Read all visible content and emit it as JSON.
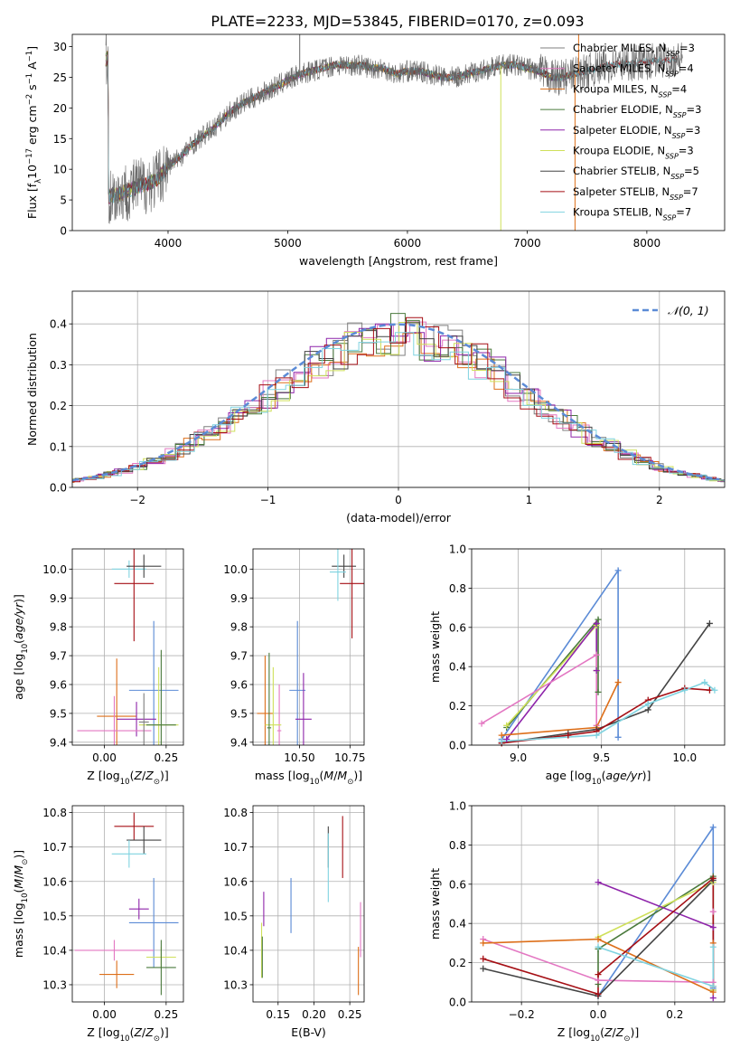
{
  "title": "PLATE=2233, MJD=53845, FIBERID=0170, z=0.093",
  "colors": {
    "Chabrier MILES": "#7f7f7f",
    "Salpeter MILES": "#e377c2",
    "Kroupa MILES": "#dd6f1a",
    "Chabrier ELODIE": "#4a7a3c",
    "Salpeter ELODIE": "#8e24aa",
    "Kroupa ELODIE": "#cfe05a",
    "Chabrier STELIB": "#444444",
    "Salpeter STELIB": "#a50f15",
    "Kroupa STELIB": "#7fd3e0",
    "extra": "#5b8bd6"
  },
  "chart_data": [
    {
      "id": "spectrum",
      "type": "line",
      "title": "PLATE=2233, MJD=53845, FIBERID=0170, z=0.093",
      "xlabel": "wavelength [Angstrom, rest frame]",
      "ylabel": "Flux [f_λ 10^-17 erg cm^-2 s^-1 A^-1]",
      "xlim": [
        3200,
        8650
      ],
      "ylim": [
        0,
        32
      ],
      "xticks": [
        4000,
        5000,
        6000,
        7000,
        8000
      ],
      "yticks": [
        0,
        5,
        10,
        15,
        20,
        25,
        30
      ],
      "grid": false,
      "legend_position": "top-right",
      "legend": [
        {
          "name": "Chabrier MILES",
          "sub": "SSP",
          "n": "=3"
        },
        {
          "name": "Salpeter MILES",
          "sub": "SSP",
          "n": "=4"
        },
        {
          "name": "Kroupa MILES",
          "sub": "SSP",
          "n": "=4"
        },
        {
          "name": "Chabrier ELODIE",
          "sub": "SSP",
          "n": "=3"
        },
        {
          "name": "Salpeter ELODIE",
          "sub": "SSP",
          "n": "=3"
        },
        {
          "name": "Kroupa ELODIE",
          "sub": "SSP",
          "n": "=3"
        },
        {
          "name": "Chabrier STELIB",
          "sub": "SSP",
          "n": "=5"
        },
        {
          "name": "Salpeter STELIB",
          "sub": "SSP",
          "n": "=7"
        },
        {
          "name": "Kroupa STELIB",
          "sub": "SSP",
          "n": "=7"
        }
      ],
      "continuum": {
        "x": [
          3500,
          3600,
          3700,
          3800,
          3900,
          4000,
          4100,
          4200,
          4300,
          4400,
          4500,
          4600,
          4700,
          4800,
          4900,
          5000,
          5100,
          5200,
          5300,
          5400,
          5500,
          5600,
          5700,
          5800,
          5900,
          6000,
          6100,
          6200,
          6300,
          6400,
          6500,
          6600,
          6700,
          6800,
          6900,
          7000,
          7100,
          7200,
          7300,
          7400,
          7500,
          7700,
          8000,
          8300
        ],
        "y": [
          5.5,
          6,
          6.8,
          7.5,
          8.2,
          10.5,
          12,
          14,
          15.5,
          17,
          19,
          20.5,
          21.5,
          22.5,
          23.5,
          24.5,
          25.5,
          26,
          26.5,
          27,
          27,
          27,
          26.5,
          26.5,
          25.5,
          26,
          26,
          25.5,
          25,
          25,
          25.5,
          26,
          26.5,
          27,
          27,
          26.5,
          26,
          25,
          25,
          25.5,
          26,
          27,
          27.5,
          28
        ]
      },
      "spikes": [
        {
          "x": 5100,
          "y": 33
        },
        {
          "x": 6780,
          "y": 0
        },
        {
          "x": 7400,
          "y": 0
        },
        {
          "x": 7430,
          "y": 32
        }
      ]
    },
    {
      "id": "residuals",
      "type": "histogram",
      "xlabel": "(data-model)/error",
      "ylabel": "Normed distribution",
      "xlim": [
        -2.5,
        2.5
      ],
      "ylim": [
        0,
        0.48
      ],
      "xticks": [
        -2,
        -1,
        0,
        1,
        2
      ],
      "yticks": [
        0.0,
        0.1,
        0.2,
        0.3,
        0.4
      ],
      "grid": true,
      "legend_position": "top-right",
      "reference_curve": {
        "name": "𝒩(0, 1)",
        "mean": 0,
        "sigma": 1
      }
    },
    {
      "id": "age-vs-Z",
      "type": "errorbar",
      "xlabel": "Z [log10(Z/Z⊙)]",
      "ylabel": "age [log10(age/yr)]",
      "xlim": [
        -0.13,
        0.32
      ],
      "ylim": [
        9.39,
        10.07
      ],
      "xticks": [
        0.0,
        0.25
      ],
      "yticks": [
        9.4,
        9.5,
        9.6,
        9.7,
        9.8,
        9.9,
        10.0
      ],
      "grid": true,
      "points": [
        {
          "model": "Kroupa STELIB",
          "x": 0.1,
          "y": 10.0,
          "xerr": 0.07,
          "yerr": 0.03
        },
        {
          "model": "Chabrier STELIB",
          "x": 0.16,
          "y": 10.01,
          "xerr": 0.07,
          "yerr": 0.04
        },
        {
          "model": "Salpeter STELIB",
          "x": 0.12,
          "y": 9.95,
          "xerr": 0.08,
          "yerr": 0.2
        },
        {
          "model": "extra",
          "x": 0.2,
          "y": 9.58,
          "xerr": 0.1,
          "yerr": 0.24
        },
        {
          "model": "Kroupa MILES",
          "x": 0.05,
          "y": 9.49,
          "xerr": 0.08,
          "yerr": 0.2
        },
        {
          "model": "Salpeter ELODIE",
          "x": 0.13,
          "y": 9.48,
          "xerr": 0.08,
          "yerr": 0.06
        },
        {
          "model": "Salpeter MILES",
          "x": 0.04,
          "y": 9.44,
          "xerr": 0.15,
          "yerr": 0.12
        },
        {
          "model": "Kroupa ELODIE",
          "x": 0.22,
          "y": 9.46,
          "xerr": 0.08,
          "yerr": 0.2
        },
        {
          "model": "Chabrier ELODIE",
          "x": 0.23,
          "y": 9.46,
          "xerr": 0.06,
          "yerr": 0.26
        },
        {
          "model": "Chabrier MILES",
          "x": 0.16,
          "y": 9.47,
          "xerr": 0.02,
          "yerr": 0.1
        }
      ]
    },
    {
      "id": "age-vs-mass",
      "type": "errorbar",
      "xlabel": "mass [log10(M/M⊙)]",
      "ylabel": "",
      "xlim": [
        10.27,
        10.82
      ],
      "ylim": [
        9.39,
        10.07
      ],
      "xticks": [
        10.25,
        10.5,
        10.75
      ],
      "yticks": [
        9.4,
        9.5,
        9.6,
        9.7,
        9.8,
        9.9,
        10.0
      ],
      "grid": true,
      "points": [
        {
          "model": "Chabrier STELIB",
          "x": 10.72,
          "y": 10.01,
          "xerr": 0.06,
          "yerr": 0.04
        },
        {
          "model": "Kroupa STELIB",
          "x": 10.69,
          "y": 9.99,
          "xerr": 0.04,
          "yerr": 0.1
        },
        {
          "model": "Salpeter STELIB",
          "x": 10.76,
          "y": 9.95,
          "xerr": 0.06,
          "yerr": 0.19
        },
        {
          "model": "extra",
          "x": 10.49,
          "y": 9.58,
          "xerr": 0.04,
          "yerr": 0.24
        },
        {
          "model": "Salpeter ELODIE",
          "x": 10.52,
          "y": 9.48,
          "xerr": 0.04,
          "yerr": 0.16
        },
        {
          "model": "Kroupa MILES",
          "x": 10.33,
          "y": 9.5,
          "xerr": 0.04,
          "yerr": 0.2
        },
        {
          "model": "Salpeter MILES",
          "x": 10.4,
          "y": 9.44,
          "xerr": 0.01,
          "yerr": 0.16
        },
        {
          "model": "Kroupa ELODIE",
          "x": 10.37,
          "y": 9.46,
          "xerr": 0.04,
          "yerr": 0.2
        },
        {
          "model": "Chabrier ELODIE",
          "x": 10.35,
          "y": 9.45,
          "xerr": 0.01,
          "yerr": 0.26
        }
      ]
    },
    {
      "id": "weight-vs-age",
      "type": "line",
      "xlabel": "age [log10(age/yr)]",
      "ylabel": "mass weight",
      "xlim": [
        8.72,
        10.24
      ],
      "ylim": [
        0,
        1.0
      ],
      "xticks": [
        9.0,
        9.5,
        10.0
      ],
      "yticks": [
        0.0,
        0.2,
        0.4,
        0.6,
        0.8,
        1.0
      ],
      "grid": true,
      "series": [
        {
          "model": "extra",
          "x": [
            8.9,
            9.6,
            9.6
          ],
          "y": [
            0.03,
            0.89,
            0.04
          ]
        },
        {
          "model": "Chabrier ELODIE",
          "x": [
            8.93,
            9.48,
            9.48
          ],
          "y": [
            0.09,
            0.64,
            0.27
          ]
        },
        {
          "model": "Kroupa ELODIE",
          "x": [
            8.93,
            9.47,
            9.47
          ],
          "y": [
            0.1,
            0.61,
            0.38
          ]
        },
        {
          "model": "Salpeter ELODIE",
          "x": [
            8.93,
            9.47,
            9.47
          ],
          "y": [
            0.03,
            0.62,
            0.38
          ]
        },
        {
          "model": "Salpeter MILES",
          "x": [
            8.78,
            9.47,
            9.47
          ],
          "y": [
            0.11,
            0.46,
            0.1
          ]
        },
        {
          "model": "Kroupa MILES",
          "x": [
            8.9,
            9.47,
            9.6
          ],
          "y": [
            0.05,
            0.09,
            0.32
          ]
        },
        {
          "model": "Chabrier STELIB",
          "x": [
            8.9,
            9.3,
            9.47,
            9.78,
            10.15
          ],
          "y": [
            0.01,
            0.06,
            0.08,
            0.18,
            0.62
          ]
        },
        {
          "model": "Salpeter STELIB",
          "x": [
            8.9,
            9.3,
            9.47,
            9.78,
            10.0,
            10.15
          ],
          "y": [
            0.01,
            0.05,
            0.07,
            0.23,
            0.29,
            0.28
          ]
        },
        {
          "model": "Kroupa STELIB",
          "x": [
            8.9,
            9.47,
            9.78,
            10.0,
            10.12,
            10.18
          ],
          "y": [
            0.02,
            0.05,
            0.21,
            0.28,
            0.32,
            0.28
          ]
        }
      ]
    },
    {
      "id": "mass-vs-Z",
      "type": "errorbar",
      "xlabel": "Z [log10(Z/Z⊙)]",
      "ylabel": "mass [log10(M/M⊙)]",
      "xlim": [
        -0.13,
        0.32
      ],
      "ylim": [
        10.25,
        10.82
      ],
      "xticks": [
        0.0,
        0.25
      ],
      "yticks": [
        10.3,
        10.4,
        10.5,
        10.6,
        10.7,
        10.8
      ],
      "grid": true,
      "points": [
        {
          "model": "Salpeter STELIB",
          "x": 0.12,
          "y": 10.76,
          "xerr": 0.08,
          "yerr": 0.04
        },
        {
          "model": "Chabrier STELIB",
          "x": 0.16,
          "y": 10.72,
          "xerr": 0.07,
          "yerr": 0.04
        },
        {
          "model": "Kroupa STELIB",
          "x": 0.1,
          "y": 10.68,
          "xerr": 0.07,
          "yerr": 0.04
        },
        {
          "model": "Salpeter ELODIE",
          "x": 0.14,
          "y": 10.52,
          "xerr": 0.04,
          "yerr": 0.03
        },
        {
          "model": "extra",
          "x": 0.2,
          "y": 10.48,
          "xerr": 0.1,
          "yerr": 0.13
        },
        {
          "model": "Salpeter MILES",
          "x": 0.04,
          "y": 10.4,
          "xerr": 0.16,
          "yerr": 0.03
        },
        {
          "model": "Kroupa ELODIE",
          "x": 0.23,
          "y": 10.38,
          "xerr": 0.06,
          "yerr": 0.03
        },
        {
          "model": "Chabrier ELODIE",
          "x": 0.23,
          "y": 10.35,
          "xerr": 0.06,
          "yerr": 0.08
        },
        {
          "model": "Kroupa MILES",
          "x": 0.05,
          "y": 10.33,
          "xerr": 0.07,
          "yerr": 0.04
        }
      ]
    },
    {
      "id": "mass-vs-EBV",
      "type": "errorbar",
      "xlabel": "E(B-V)",
      "ylabel": "",
      "xlim": [
        0.115,
        0.27
      ],
      "ylim": [
        10.25,
        10.82
      ],
      "xticks": [
        0.15,
        0.2,
        0.25
      ],
      "yticks": [
        10.3,
        10.4,
        10.5,
        10.6,
        10.7,
        10.8
      ],
      "grid": true,
      "points": [
        {
          "model": "Chabrier STELIB",
          "x": 0.22,
          "y": 10.7,
          "xerr": 0,
          "yerr": 0.06
        },
        {
          "model": "Salpeter STELIB",
          "x": 0.24,
          "y": 10.7,
          "xerr": 0,
          "yerr": 0.09
        },
        {
          "model": "Kroupa STELIB",
          "x": 0.22,
          "y": 10.64,
          "xerr": 0,
          "yerr": 0.1
        },
        {
          "model": "extra",
          "x": 0.168,
          "y": 10.53,
          "xerr": 0,
          "yerr": 0.08
        },
        {
          "model": "Salpeter ELODIE",
          "x": 0.13,
          "y": 10.52,
          "xerr": 0,
          "yerr": 0.05
        },
        {
          "model": "Salpeter MILES",
          "x": 0.265,
          "y": 10.46,
          "xerr": 0,
          "yerr": 0.08
        },
        {
          "model": "Kroupa ELODIE",
          "x": 0.127,
          "y": 10.4,
          "xerr": 0,
          "yerr": 0.08
        },
        {
          "model": "Chabrier ELODIE",
          "x": 0.128,
          "y": 10.38,
          "xerr": 0,
          "yerr": 0.06
        },
        {
          "model": "Kroupa MILES",
          "x": 0.262,
          "y": 10.34,
          "xerr": 0,
          "yerr": 0.07
        }
      ]
    },
    {
      "id": "weight-vs-Z",
      "type": "line",
      "xlabel": "Z [log10(Z/Z⊙)]",
      "ylabel": "mass weight",
      "xlim": [
        -0.33,
        0.33
      ],
      "ylim": [
        0,
        1.0
      ],
      "xticks": [
        -0.2,
        0.0,
        0.2
      ],
      "yticks": [
        0.0,
        0.2,
        0.4,
        0.6,
        0.8,
        1.0
      ],
      "grid": true,
      "series": [
        {
          "model": "extra",
          "x": [
            0.0,
            0.3,
            0.3
          ],
          "y": [
            0.03,
            0.89,
            0.07
          ]
        },
        {
          "model": "Chabrier ELODIE",
          "x": [
            0.0,
            0.0,
            0.3,
            0.3
          ],
          "y": [
            0.09,
            0.27,
            0.64,
            0.06
          ]
        },
        {
          "model": "Kroupa ELODIE",
          "x": [
            0.0,
            0.3,
            0.3
          ],
          "y": [
            0.33,
            0.61,
            0.06
          ]
        },
        {
          "model": "Salpeter ELODIE",
          "x": [
            0.0,
            0.3,
            0.3
          ],
          "y": [
            0.61,
            0.38,
            0.02
          ]
        },
        {
          "model": "Salpeter MILES",
          "x": [
            -0.3,
            0.0,
            0.3,
            0.3
          ],
          "y": [
            0.32,
            0.11,
            0.1,
            0.46
          ]
        },
        {
          "model": "Kroupa MILES",
          "x": [
            -0.3,
            0.0,
            0.3,
            0.3
          ],
          "y": [
            0.3,
            0.32,
            0.05,
            0.3
          ]
        },
        {
          "model": "Chabrier STELIB",
          "x": [
            -0.3,
            0.0,
            0.3
          ],
          "y": [
            0.17,
            0.03,
            0.62
          ]
        },
        {
          "model": "Salpeter STELIB",
          "x": [
            -0.3,
            0.0,
            0.0,
            0.3,
            0.3
          ],
          "y": [
            0.22,
            0.04,
            0.14,
            0.63,
            0.08
          ]
        },
        {
          "model": "Kroupa STELIB",
          "x": [
            0.0,
            0.3,
            0.3
          ],
          "y": [
            0.28,
            0.08,
            0.28
          ]
        }
      ]
    }
  ]
}
